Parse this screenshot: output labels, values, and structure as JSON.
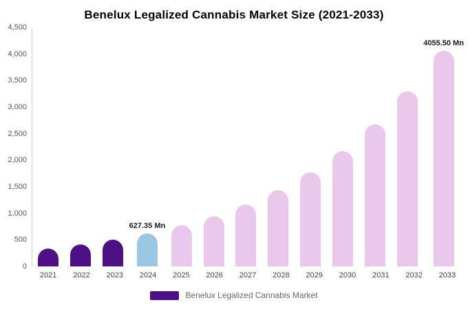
{
  "title": "Benelux Legalized Cannabis Market Size (2021-2033)",
  "legend": {
    "label": "Benelux Legalized Cannabis Market",
    "color": "#4e1185"
  },
  "y_axis": {
    "ticks": [
      {
        "value": 4500,
        "label": "4,500"
      },
      {
        "value": 4000,
        "label": "4,000"
      },
      {
        "value": 3500,
        "label": "3,500"
      },
      {
        "value": 3000,
        "label": "3,000"
      },
      {
        "value": 2500,
        "label": "2,500"
      },
      {
        "value": 2000,
        "label": "2,000"
      },
      {
        "value": 1500,
        "label": "1,500"
      },
      {
        "value": 1000,
        "label": "1,000"
      },
      {
        "value": 500,
        "label": "500"
      },
      {
        "value": 0,
        "label": "0"
      }
    ]
  },
  "chart_data": {
    "type": "bar",
    "title": "Benelux Legalized Cannabis Market Size (2021-2033)",
    "unit": "Mn",
    "categories": [
      "2021",
      "2022",
      "2023",
      "2024",
      "2025",
      "2026",
      "2027",
      "2028",
      "2029",
      "2030",
      "2031",
      "2032",
      "2033"
    ],
    "values": [
      337,
      415,
      510,
      627.35,
      772,
      950,
      1168,
      1437,
      1768,
      2175,
      2676,
      3292,
      4055.5
    ],
    "bar_colors": [
      "#4e1185",
      "#4e1185",
      "#4e1185",
      "#9cc7e2",
      "#eac8eb",
      "#eac8eb",
      "#eac8eb",
      "#eac8eb",
      "#eac8eb",
      "#eac8eb",
      "#eac8eb",
      "#eac8eb",
      "#eac8eb"
    ],
    "annotations": [
      {
        "category": "2024",
        "text": "627.35 Mn"
      },
      {
        "category": "2033",
        "text": "4055.50 Mn"
      }
    ],
    "ylim": [
      0,
      4500
    ],
    "xlabel": "",
    "ylabel": "",
    "grid": false,
    "legend_position": "bottom"
  }
}
